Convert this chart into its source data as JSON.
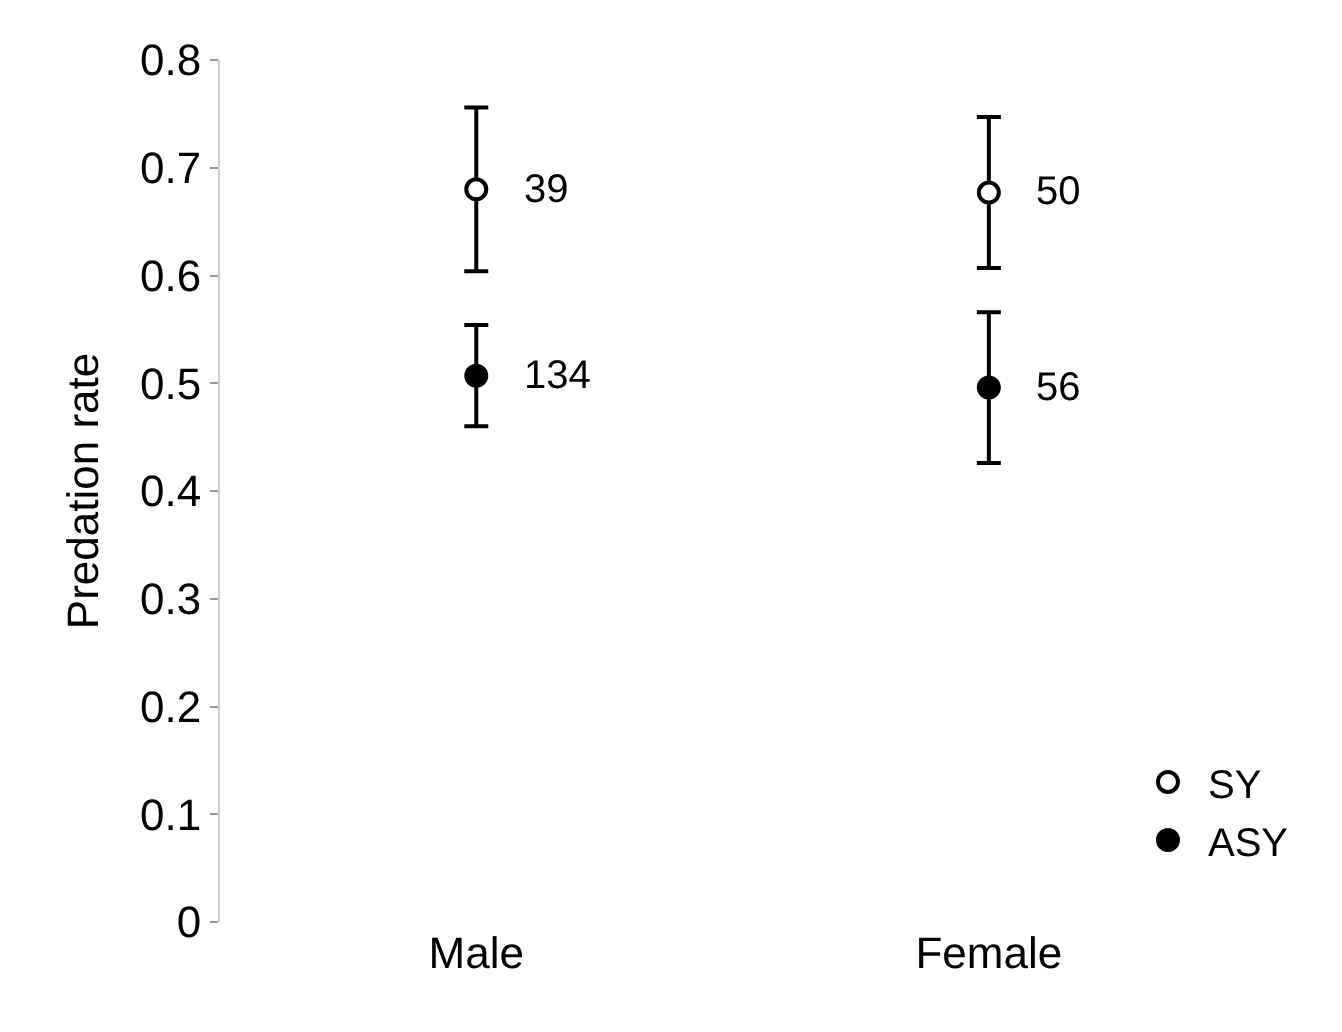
{
  "chart_data": {
    "type": "scatter",
    "ylabel": "Predation rate",
    "categories": [
      "Male",
      "Female"
    ],
    "series": [
      {
        "name": "SY",
        "color": "#ffffff",
        "values": [
          0.68,
          0.677
        ],
        "errors": [
          0.076,
          0.07
        ]
      },
      {
        "name": "ASY",
        "color": "#000000",
        "values": [
          0.507,
          0.496
        ],
        "errors": [
          0.047,
          0.07
        ]
      }
    ],
    "annotations": [
      {
        "text": "39",
        "x": "Male",
        "y": 0.68
      },
      {
        "text": "50",
        "x": "Female",
        "y": 0.677
      },
      {
        "text": "134",
        "x": "Male",
        "y": 0.507
      },
      {
        "text": "56",
        "x": "Female",
        "y": 0.496
      }
    ],
    "ylim": [
      0,
      0.8
    ],
    "yticks": [
      0,
      0.1,
      0.2,
      0.3,
      0.4,
      0.5,
      0.6,
      0.7,
      0.8
    ],
    "grid": false,
    "legend": "bottom right",
    "marker": "circle"
  }
}
